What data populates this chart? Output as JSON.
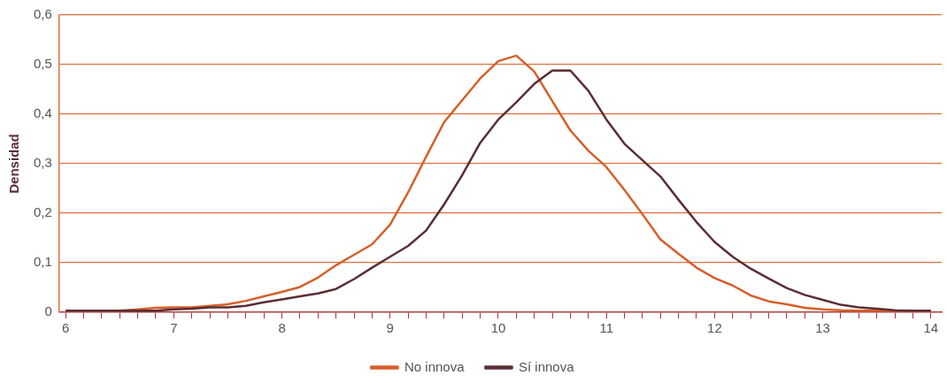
{
  "chart_data": {
    "type": "line",
    "ylabel": "Densidad",
    "x": [
      6,
      6.167,
      6.333,
      6.5,
      6.667,
      6.833,
      7,
      7.167,
      7.333,
      7.5,
      7.667,
      7.833,
      8,
      8.167,
      8.333,
      8.5,
      8.667,
      8.833,
      9,
      9.167,
      9.333,
      9.5,
      9.667,
      9.833,
      10,
      10.167,
      10.333,
      10.5,
      10.667,
      10.833,
      11,
      11.167,
      11.333,
      11.5,
      11.667,
      11.833,
      12,
      12.167,
      12.333,
      12.5,
      12.667,
      12.833,
      13,
      13.167,
      13.333,
      13.5,
      13.667,
      13.833,
      14
    ],
    "series": [
      {
        "name": "No innova",
        "color": "#d65f2a",
        "values": [
          0.003,
          0.003,
          0.003,
          0.003,
          0.006,
          0.009,
          0.01,
          0.01,
          0.013,
          0.016,
          0.023,
          0.032,
          0.041,
          0.051,
          0.07,
          0.095,
          0.116,
          0.137,
          0.177,
          0.242,
          0.314,
          0.384,
          0.428,
          0.472,
          0.507,
          0.518,
          0.486,
          0.426,
          0.367,
          0.326,
          0.293,
          0.247,
          0.198,
          0.147,
          0.118,
          0.09,
          0.069,
          0.054,
          0.034,
          0.022,
          0.016,
          0.009,
          0.006,
          0.004,
          0.003,
          0.003,
          0.003,
          0.003,
          0.003
        ]
      },
      {
        "name": "Sí innova",
        "color": "#5a2e34",
        "values": [
          0.003,
          0.003,
          0.003,
          0.003,
          0.003,
          0.003,
          0.006,
          0.007,
          0.01,
          0.01,
          0.013,
          0.02,
          0.026,
          0.032,
          0.038,
          0.047,
          0.067,
          0.09,
          0.112,
          0.134,
          0.165,
          0.218,
          0.277,
          0.342,
          0.389,
          0.424,
          0.461,
          0.488,
          0.488,
          0.447,
          0.389,
          0.34,
          0.307,
          0.274,
          0.227,
          0.182,
          0.142,
          0.112,
          0.088,
          0.068,
          0.049,
          0.035,
          0.025,
          0.015,
          0.01,
          0.007,
          0.004,
          0.003,
          0.003
        ]
      }
    ],
    "xlim": [
      5.94,
      14.1
    ],
    "xticks": [
      6,
      {
        "value": 6.167,
        "label": null
      },
      {
        "value": 6.333,
        "label": null
      },
      {
        "value": 6.5,
        "label": null
      },
      {
        "value": 6.667,
        "label": null
      },
      {
        "value": 6.833,
        "label": null
      },
      7,
      {
        "value": 7.167,
        "label": null
      },
      {
        "value": 7.333,
        "label": null
      },
      {
        "value": 7.5,
        "label": null
      },
      {
        "value": 7.667,
        "label": null
      },
      {
        "value": 7.833,
        "label": null
      },
      8,
      {
        "value": 8.167,
        "label": null
      },
      {
        "value": 8.333,
        "label": null
      },
      {
        "value": 8.5,
        "label": null
      },
      {
        "value": 8.667,
        "label": null
      },
      {
        "value": 8.833,
        "label": null
      },
      9,
      {
        "value": 9.167,
        "label": null
      },
      {
        "value": 9.333,
        "label": null
      },
      {
        "value": 9.5,
        "label": null
      },
      {
        "value": 9.667,
        "label": null
      },
      {
        "value": 9.833,
        "label": null
      },
      10,
      {
        "value": 10.167,
        "label": null
      },
      {
        "value": 10.333,
        "label": null
      },
      {
        "value": 10.5,
        "label": null
      },
      {
        "value": 10.667,
        "label": null
      },
      {
        "value": 10.833,
        "label": null
      },
      11,
      {
        "value": 11.167,
        "label": null
      },
      {
        "value": 11.333,
        "label": null
      },
      {
        "value": 11.5,
        "label": null
      },
      {
        "value": 11.667,
        "label": null
      },
      {
        "value": 11.833,
        "label": null
      },
      12,
      {
        "value": 12.167,
        "label": null
      },
      {
        "value": 12.333,
        "label": null
      },
      {
        "value": 12.5,
        "label": null
      },
      {
        "value": 12.667,
        "label": null
      },
      {
        "value": 12.833,
        "label": null
      },
      13,
      {
        "value": 13.167,
        "label": null
      },
      {
        "value": 13.333,
        "label": null
      },
      {
        "value": 13.5,
        "label": null
      },
      {
        "value": 13.667,
        "label": null
      },
      {
        "value": 13.833,
        "label": null
      },
      14
    ],
    "ylim": [
      0,
      0.6
    ],
    "yticks": [
      0,
      {
        "value": 0.1,
        "label": "0,1"
      },
      {
        "value": 0.2,
        "label": "0,2"
      },
      {
        "value": 0.3,
        "label": "0,3"
      },
      {
        "value": 0.4,
        "label": "0,4"
      },
      {
        "value": 0.5,
        "label": "0,5"
      },
      {
        "value": 0.6,
        "label": "0,6"
      }
    ],
    "grid": "y",
    "legend": "bottom",
    "marker": "none",
    "line_style": "solid"
  }
}
